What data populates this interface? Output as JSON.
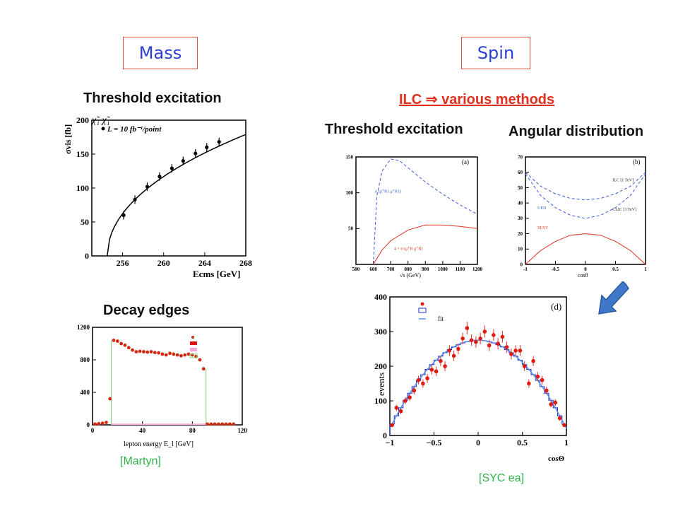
{
  "mass_label": "Mass",
  "spin_label": "Spin",
  "threshold_title": "Threshold excitation",
  "ilc_title": "ILC ⇒ various methods",
  "threshold_title_2": "Threshold excitation",
  "angular_title": "Angular distribution",
  "decay_title": "Decay edges",
  "credit_martyn": "[Martyn]",
  "credit_syc": "[SYC ea]",
  "colors": {
    "accent_red": "#e0301e",
    "box_border": "#e0523a",
    "box_text": "#2b3fd6",
    "credit_green": "#2fb34a",
    "arrow_blue": "#3f78c8"
  },
  "icons": {
    "arrow": "down-left-arrow-icon"
  },
  "chart_data": [
    {
      "id": "threshold",
      "type": "line",
      "ylabel_text": "σvis [fb]",
      "xlabel_text": "Ecms [GeV]",
      "legend_text": "L = 10 fb⁻¹/point",
      "process_text": "χ̃₁ χ̃₁",
      "xlim": [
        253,
        268
      ],
      "ylim": [
        0,
        200
      ],
      "xticks": [
        "256",
        "260",
        "264",
        "268"
      ],
      "yticks": [
        "0",
        "50",
        "100",
        "150",
        "200"
      ],
      "points": {
        "x": [
          256.1,
          257.2,
          258.4,
          259.6,
          260.8,
          261.9,
          263.1,
          264.2,
          265.4
        ],
        "y": [
          60,
          83,
          102,
          117,
          129,
          140,
          151,
          160,
          168
        ]
      }
    },
    {
      "id": "decay",
      "type": "scatter",
      "xlabel_text": "lepton energy E_l [GeV]",
      "xlim": [
        0,
        120
      ],
      "ylim": [
        0,
        1200
      ],
      "xticks": [
        "0",
        "40",
        "80",
        "120"
      ],
      "yticks": [
        "0",
        "400",
        "800",
        "1200"
      ],
      "points": {
        "x": [
          2,
          5,
          8,
          11,
          14,
          17,
          20,
          23,
          26,
          29,
          32,
          35,
          38,
          41,
          44,
          47,
          50,
          53,
          56,
          59,
          62,
          65,
          68,
          71,
          74,
          77,
          80,
          83,
          86,
          89,
          92,
          95,
          98,
          101,
          104,
          107,
          110,
          113
        ],
        "y": [
          10,
          15,
          20,
          30,
          320,
          1040,
          1030,
          1000,
          980,
          950,
          920,
          900,
          905,
          900,
          895,
          900,
          890,
          885,
          870,
          860,
          880,
          870,
          860,
          850,
          860,
          870,
          860,
          840,
          800,
          690,
          10,
          10,
          10,
          10,
          10,
          10,
          10,
          10
        ]
      }
    },
    {
      "id": "threshold2",
      "type": "line",
      "xlabel_text": "√s (GeV)",
      "xlim": [
        500,
        1200
      ],
      "ylim": [
        0,
        150
      ],
      "xticks": [
        "500",
        "600",
        "700",
        "800",
        "900",
        "1000",
        "1100",
        "1200"
      ],
      "yticks": [
        "50",
        "100",
        "150"
      ],
      "panel": "(a)",
      "series": [
        {
          "name": "σ (μ̃⁺R1 μ̃⁻R1)",
          "x": [
            600,
            620,
            650,
            700,
            750,
            800,
            900,
            1000,
            1100,
            1200
          ],
          "y": [
            0,
            95,
            130,
            147,
            145,
            135,
            115,
            98,
            83,
            70
          ]
        },
        {
          "name": "4 × σ (μ̃⁺R μ̃⁻R)",
          "x": [
            600,
            650,
            700,
            800,
            900,
            1000,
            1100,
            1200
          ],
          "y": [
            0,
            20,
            33,
            48,
            55,
            55,
            53,
            50
          ]
        }
      ]
    },
    {
      "id": "angular",
      "type": "line",
      "xlabel_text": "cosθ",
      "xlim": [
        -1,
        1
      ],
      "ylim": [
        0,
        70
      ],
      "xticks": [
        "-1",
        "-0.5",
        "0",
        "0.5",
        "1"
      ],
      "yticks": [
        "0",
        "10",
        "20",
        "30",
        "40",
        "50",
        "60",
        "70"
      ],
      "panel": "(b)",
      "series": [
        {
          "name": "UED",
          "label": "ILC [1 TeV]",
          "x": [
            -1,
            -0.75,
            -0.5,
            -0.25,
            0,
            0.25,
            0.5,
            0.75,
            1
          ],
          "y": [
            60,
            51,
            46,
            43,
            42,
            43,
            46,
            51,
            60
          ]
        },
        {
          "name": "UED",
          "label": "CLIC [3 TeV]",
          "x": [
            -1,
            -0.75,
            -0.5,
            -0.25,
            0,
            0.25,
            0.5,
            0.75,
            1
          ],
          "y": [
            59,
            45,
            37,
            32,
            30,
            32,
            37,
            45,
            59
          ]
        },
        {
          "name": "SUSY",
          "x": [
            -1,
            -0.75,
            -0.5,
            -0.25,
            0,
            0.25,
            0.5,
            0.75,
            1
          ],
          "y": [
            0,
            9,
            15,
            19,
            20,
            19,
            15,
            9,
            0
          ]
        }
      ]
    },
    {
      "id": "events",
      "type": "scatter",
      "ylabel_text": "events",
      "xlabel_text": "cosΘ",
      "panel": "(d)",
      "legend_fit_text": "fit",
      "xlim": [
        -1,
        1
      ],
      "ylim": [
        0,
        400
      ],
      "xticks": [
        "−1",
        "−0.5",
        "0",
        "0.5",
        "1"
      ],
      "yticks": [
        "0",
        "100",
        "200",
        "300",
        "400"
      ],
      "points": {
        "x": [
          -0.975,
          -0.925,
          -0.875,
          -0.825,
          -0.775,
          -0.725,
          -0.675,
          -0.625,
          -0.575,
          -0.525,
          -0.475,
          -0.425,
          -0.375,
          -0.325,
          -0.275,
          -0.225,
          -0.175,
          -0.125,
          -0.075,
          -0.025,
          0.025,
          0.075,
          0.125,
          0.175,
          0.225,
          0.275,
          0.325,
          0.375,
          0.425,
          0.475,
          0.525,
          0.575,
          0.625,
          0.675,
          0.725,
          0.775,
          0.825,
          0.875,
          0.925,
          0.975
        ],
        "y": [
          30,
          80,
          70,
          100,
          110,
          130,
          160,
          150,
          165,
          190,
          185,
          215,
          200,
          245,
          230,
          250,
          280,
          310,
          275,
          270,
          280,
          300,
          260,
          290,
          265,
          285,
          255,
          235,
          245,
          245,
          200,
          150,
          215,
          170,
          160,
          130,
          90,
          95,
          50,
          30
        ]
      },
      "fit": {
        "x": [
          -1,
          -0.75,
          -0.5,
          -0.25,
          0,
          0.25,
          0.5,
          0.75,
          1
        ],
        "y": [
          20,
          120,
          205,
          255,
          275,
          255,
          205,
          120,
          20
        ]
      }
    }
  ]
}
